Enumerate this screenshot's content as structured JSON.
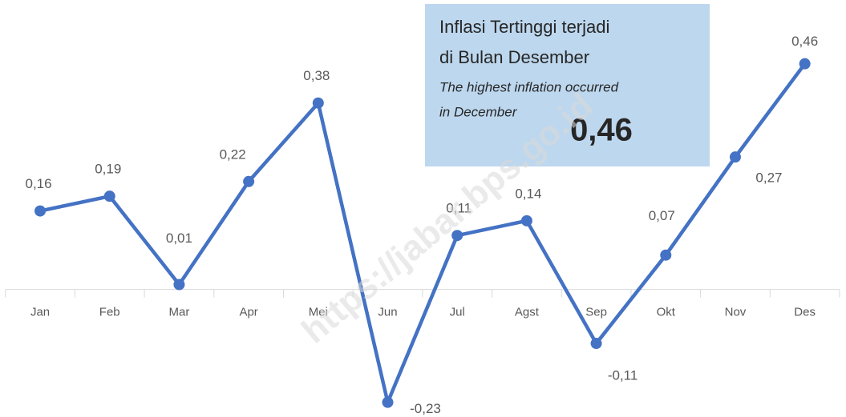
{
  "chart_data": {
    "type": "line",
    "categories": [
      "Jan",
      "Feb",
      "Mar",
      "Apr",
      "Mei",
      "Jun",
      "Jul",
      "Agst",
      "Sep",
      "Okt",
      "Nov",
      "Des"
    ],
    "series": [
      {
        "color": "#4472c4",
        "values": [
          0.16,
          0.19,
          0.01,
          0.22,
          0.38,
          -0.23,
          0.11,
          0.14,
          -0.11,
          0.07,
          0.27,
          0.46
        ],
        "value_labels": [
          "0,16",
          "0,19",
          "0,01",
          "0,22",
          "0,38",
          "-0,23",
          "0,11",
          "0,14",
          "-0,11",
          "0,07",
          "0,27",
          "0,46"
        ]
      }
    ],
    "ylim": [
      -0.26,
      0.59
    ],
    "annotation": {
      "line1": "Inflasi Tertinggi terjadi",
      "line2": "di Bulan Desember",
      "line3": "The highest inflation occurred",
      "line4": "in December",
      "value": "0,46"
    },
    "watermark": "https://jabar.bps.go.id"
  }
}
